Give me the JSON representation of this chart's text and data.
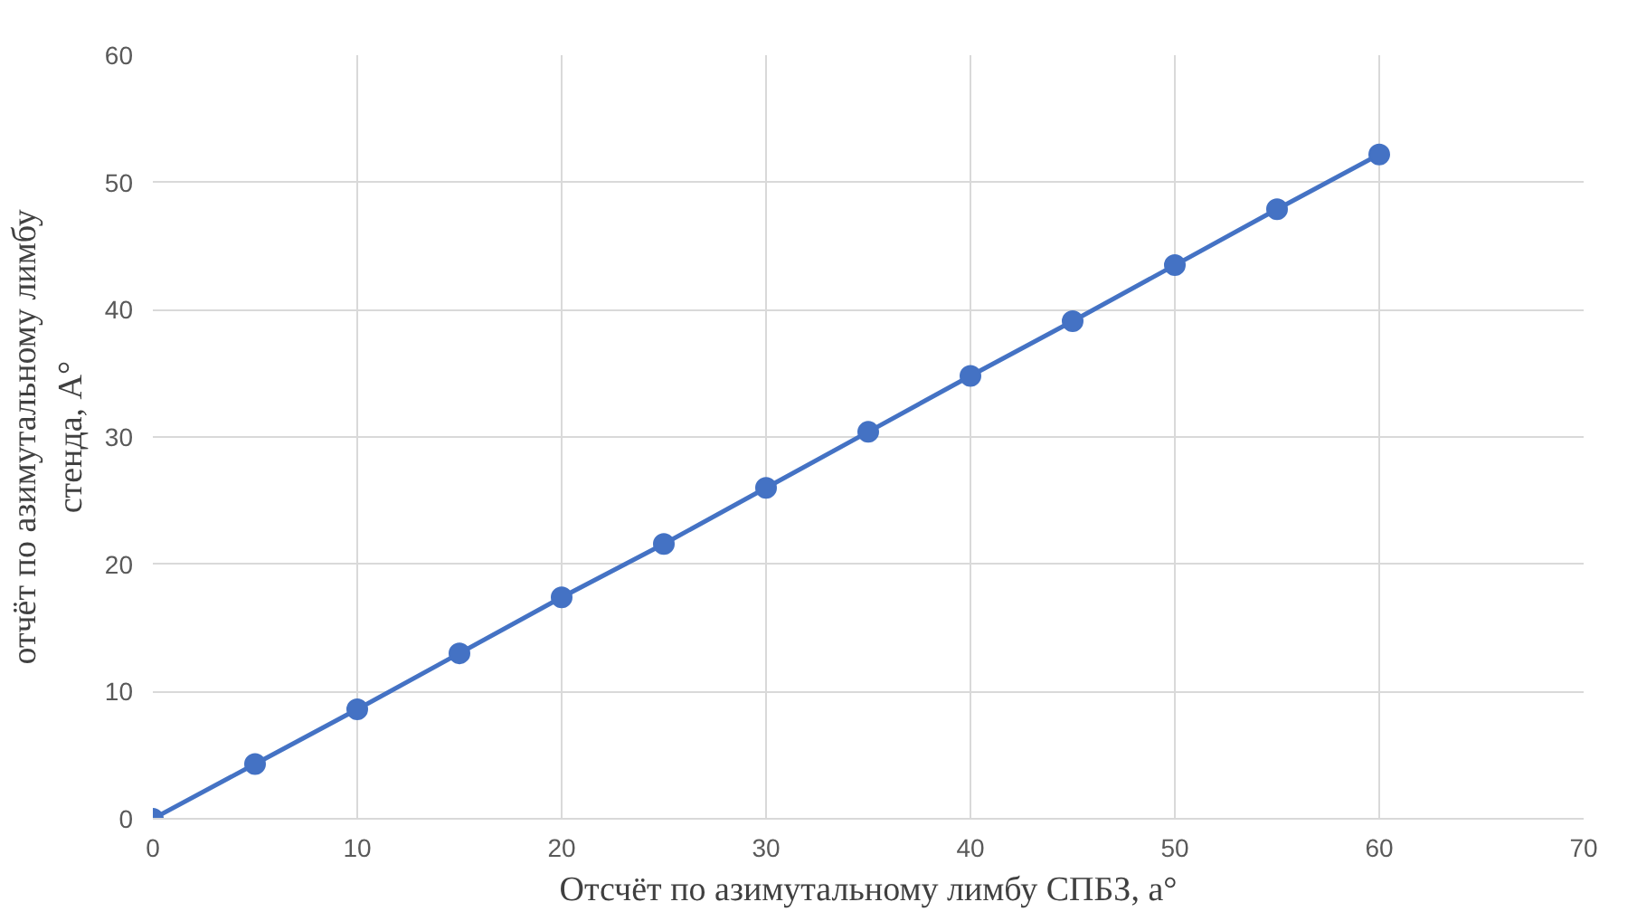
{
  "chart_data": {
    "type": "line",
    "xlabel": "Отсчёт по азимутальному лимбу СПБЗ, a°",
    "ylabel": "отчёт по азимутальному лимбу стенда, A°",
    "x": [
      0,
      5,
      10,
      15,
      20,
      25,
      30,
      35,
      40,
      45,
      50,
      55,
      60
    ],
    "series": [
      {
        "color": "#4472c4",
        "values": [
          0,
          4.3,
          8.6,
          13,
          17.4,
          21.6,
          26,
          30.4,
          34.8,
          39.1,
          43.5,
          47.9,
          52.2
        ]
      }
    ],
    "xlim": [
      0,
      70
    ],
    "xticks": [
      0,
      10,
      20,
      30,
      40,
      50,
      60,
      70
    ],
    "ylim": [
      0,
      60
    ],
    "yticks": [
      0,
      10,
      20,
      30,
      40,
      50,
      60
    ],
    "grid": true,
    "marker": "circle",
    "line_style": "solid"
  }
}
